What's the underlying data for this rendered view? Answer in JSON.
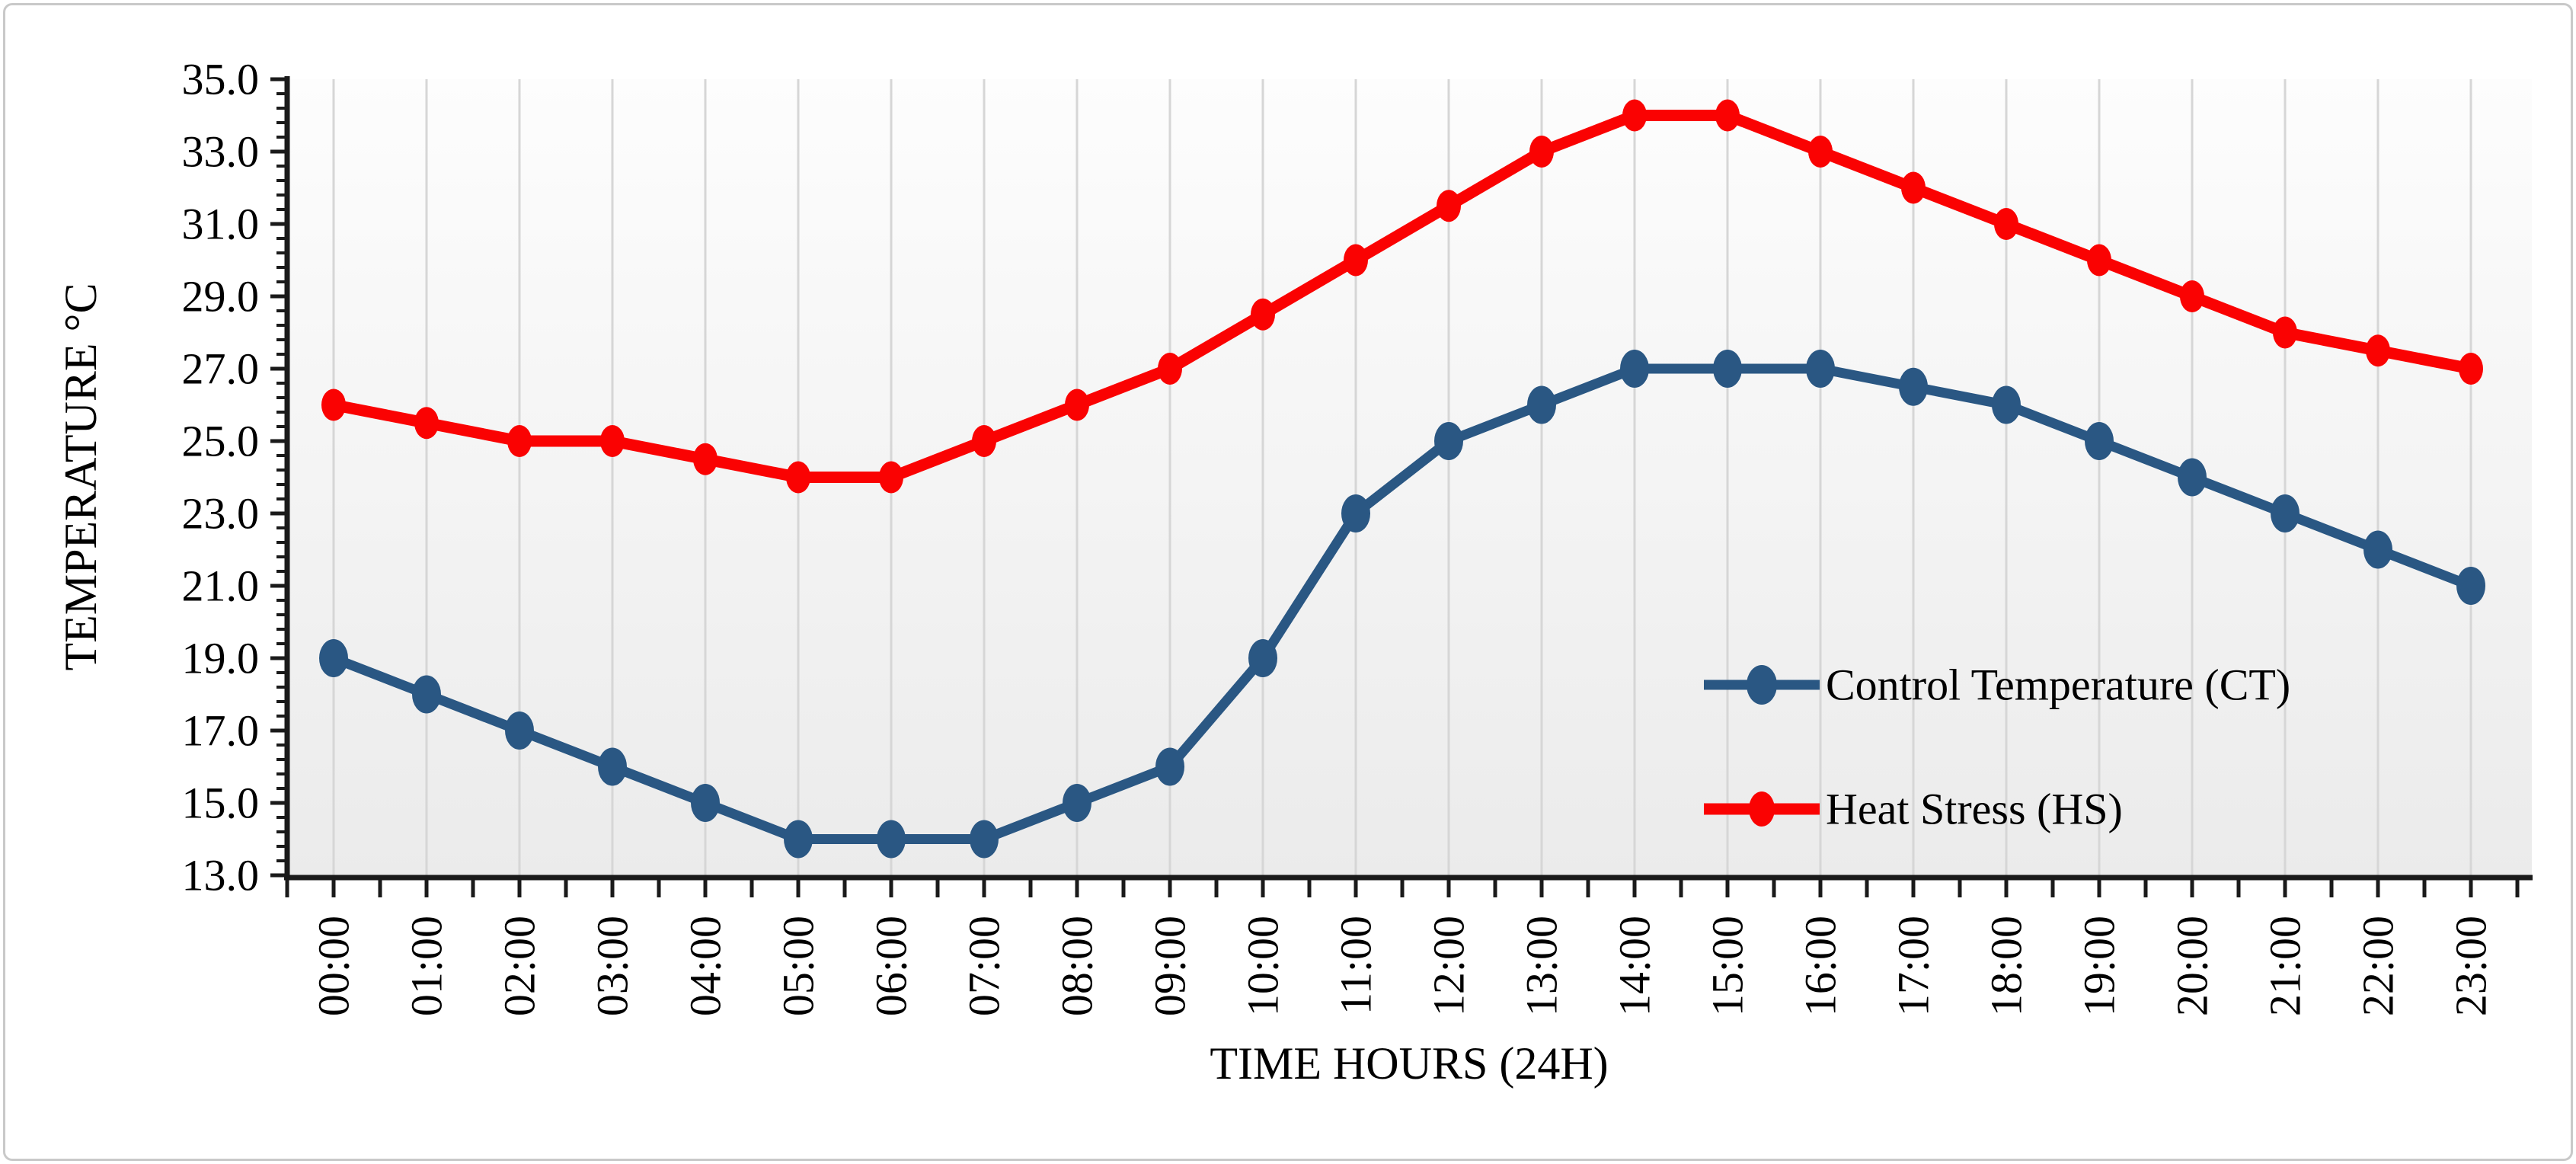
{
  "figure": {
    "background_color": "#ffffff",
    "frame_border_color": "#c9c9c9",
    "plot_bg_top_color": "#fdfdfd",
    "plot_bg_bottom_color": "#ebebeb",
    "gridline_color": "#d6d6d6",
    "axis_color": "#1a1a1a"
  },
  "chart_data": {
    "type": "line",
    "title": "",
    "xlabel": "TIME HOURS (24H)",
    "ylabel": "TEMPERATURE °C",
    "categories": [
      "00:00",
      "01:00",
      "02:00",
      "03:00",
      "04:00",
      "05:00",
      "06:00",
      "07:00",
      "08:00",
      "09:00",
      "10:00",
      "11:00",
      "12:00",
      "13:00",
      "14:00",
      "15:00",
      "16:00",
      "17:00",
      "18:00",
      "19:00",
      "20:00",
      "21:00",
      "22:00",
      "23:00"
    ],
    "series": [
      {
        "name": "Control Temperature (CT)",
        "color": "#2A5783",
        "values": [
          19.0,
          18.0,
          17.0,
          16.0,
          15.0,
          14.0,
          14.0,
          14.0,
          15.0,
          16.0,
          19.0,
          23.0,
          25.0,
          26.0,
          27.0,
          27.0,
          27.0,
          26.5,
          26.0,
          25.0,
          24.0,
          23.0,
          22.0,
          21.0
        ]
      },
      {
        "name": "Heat Stress (HS)",
        "color": "#FA0202",
        "values": [
          26.0,
          25.5,
          25.0,
          25.0,
          24.5,
          24.0,
          24.0,
          25.0,
          26.0,
          27.0,
          28.5,
          30.0,
          31.5,
          33.0,
          34.0,
          34.0,
          33.0,
          32.0,
          31.0,
          30.0,
          29.0,
          28.0,
          27.5,
          27.0
        ]
      }
    ],
    "ylim": [
      13.0,
      35.0
    ],
    "ytick_step": 2.0,
    "y_minor_tick_step": 0.4,
    "ytick_labels": [
      "13.0",
      "15.0",
      "17.0",
      "19.0",
      "21.0",
      "23.0",
      "25.0",
      "27.0",
      "29.0",
      "31.0",
      "33.0",
      "35.0"
    ],
    "grid": "vertical-only",
    "legend_position": "inside-right",
    "x_labels_rotation_degrees": -90
  }
}
